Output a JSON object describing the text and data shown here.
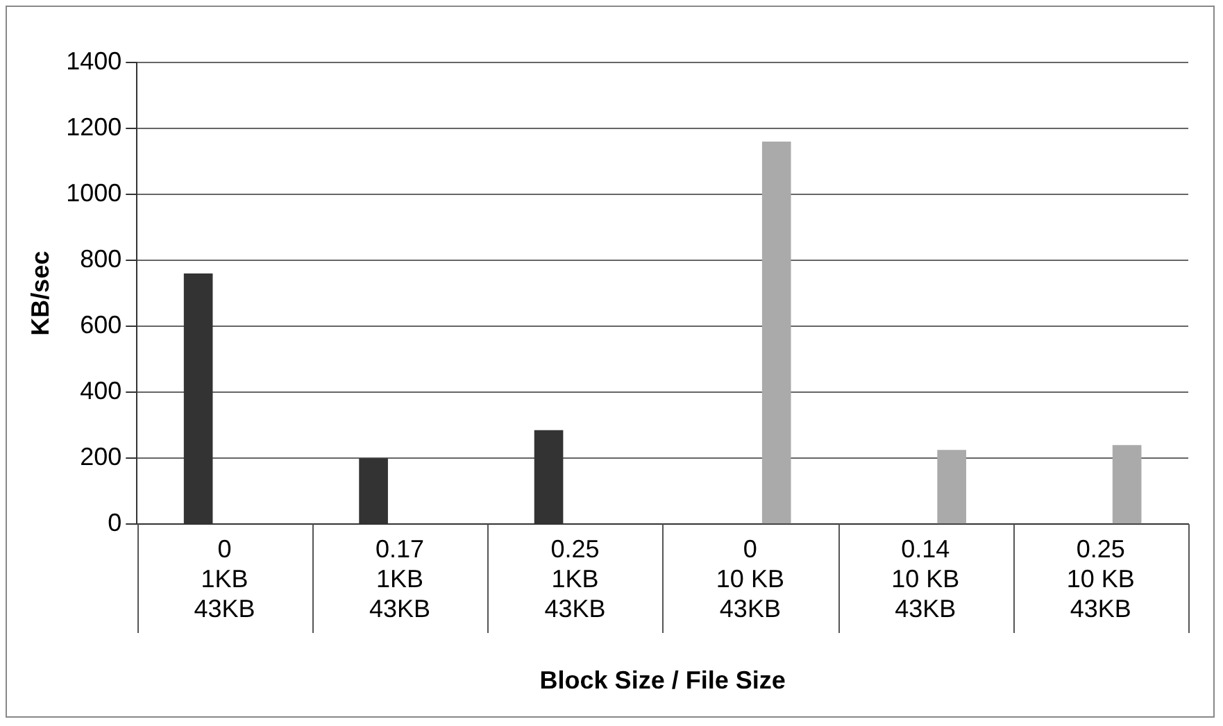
{
  "chart_data": {
    "type": "bar",
    "xlabel": "Block Size / File Size",
    "ylabel": "KB/sec",
    "categories": [
      "0\n1KB\n43KB",
      "0.17\n1KB\n43KB",
      "0.25\n1KB\n43KB",
      "0\n10 KB\n43KB",
      "0.14\n10 KB\n43KB",
      "0.25\n10 KB\n43KB"
    ],
    "series": [
      {
        "color": "#333333",
        "values": [
          760,
          200,
          285,
          null,
          null,
          null
        ]
      },
      {
        "color": "#aaaaaa",
        "values": [
          null,
          null,
          null,
          1160,
          225,
          240
        ]
      }
    ],
    "ylim": [
      0,
      1400
    ],
    "yticks": [
      0,
      200,
      400,
      600,
      800,
      1000,
      1200,
      1400
    ],
    "grid": "y",
    "legend": false
  }
}
